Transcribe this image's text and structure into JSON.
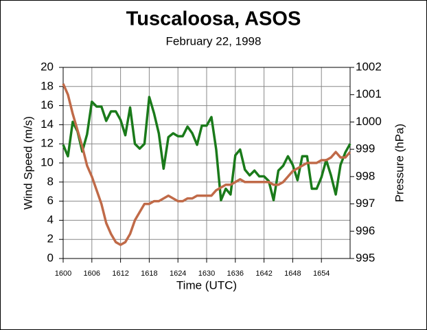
{
  "chart_data": {
    "type": "line",
    "title": "Tuscaloosa, ASOS",
    "subtitle": "February 22, 1998",
    "x_label": "Time (UTC)",
    "y_label": "Wind Speed (m/s)",
    "y2_label": "Pressure (hPa)",
    "x": [
      1600,
      1601,
      1602,
      1603,
      1604,
      1605,
      1606,
      1607,
      1608,
      1609,
      1610,
      1611,
      1612,
      1613,
      1614,
      1615,
      1616,
      1617,
      1618,
      1619,
      1620,
      1621,
      1622,
      1623,
      1624,
      1625,
      1626,
      1627,
      1628,
      1629,
      1630,
      1631,
      1632,
      1633,
      1634,
      1635,
      1636,
      1637,
      1638,
      1639,
      1640,
      1641,
      1642,
      1643,
      1644,
      1645,
      1646,
      1647,
      1648,
      1649,
      1650,
      1651,
      1652,
      1653,
      1654,
      1655,
      1656,
      1657,
      1658,
      1659,
      1660
    ],
    "series": [
      {
        "color": "#1a7a1a",
        "values": [
          11.9,
          10.7,
          14.3,
          13.3,
          11.2,
          13,
          16.4,
          15.9,
          15.9,
          14.4,
          15.4,
          15.4,
          14.5,
          12.9,
          15.8,
          12,
          11.5,
          12,
          16.9,
          15.2,
          13.1,
          9.4,
          12.7,
          13.1,
          12.8,
          12.8,
          13.8,
          13.1,
          11.9,
          13.9,
          13.9,
          14.8,
          11.4,
          6.1,
          7.3,
          6.7,
          10.8,
          11.4,
          9.3,
          8.7,
          9.2,
          8.6,
          8.6,
          8.1,
          6.1,
          9.2,
          9.7,
          10.7,
          9.8,
          8.2,
          10.7,
          10.7,
          7.3,
          7.3,
          8.5,
          10.3,
          8.7,
          6.7,
          9.8,
          11.1,
          12
        ]
      },
      {
        "color": "#c06a48",
        "axis": "y2",
        "values": [
          1001.4,
          1001.0,
          1000.3,
          999.7,
          999.1,
          998.4,
          998.0,
          997.5,
          997.0,
          996.3,
          995.9,
          995.6,
          995.5,
          995.6,
          995.9,
          996.4,
          996.7,
          997.0,
          997.0,
          997.1,
          997.1,
          997.2,
          997.3,
          997.2,
          997.1,
          997.1,
          997.2,
          997.2,
          997.3,
          997.3,
          997.3,
          997.3,
          997.5,
          997.6,
          997.7,
          997.7,
          997.8,
          997.9,
          997.8,
          997.8,
          997.8,
          997.8,
          997.8,
          997.8,
          997.7,
          997.7,
          997.8,
          998.0,
          998.2,
          998.3,
          998.4,
          998.5,
          998.5,
          998.5,
          998.6,
          998.6,
          998.7,
          998.9,
          998.7,
          998.7,
          998.9
        ]
      }
    ],
    "xlim": [
      1600,
      1660
    ],
    "xticks": [
      1600,
      1606,
      1612,
      1618,
      1624,
      1630,
      1636,
      1642,
      1648,
      1654
    ],
    "ylim": [
      0,
      20
    ],
    "yticks": [
      0,
      2,
      4,
      6,
      8,
      10,
      12,
      14,
      16,
      18,
      20
    ],
    "y2lim": [
      995,
      1002
    ],
    "y2ticks": [
      995,
      996,
      997,
      998,
      999,
      1000,
      1001,
      1002
    ],
    "grid": true
  }
}
